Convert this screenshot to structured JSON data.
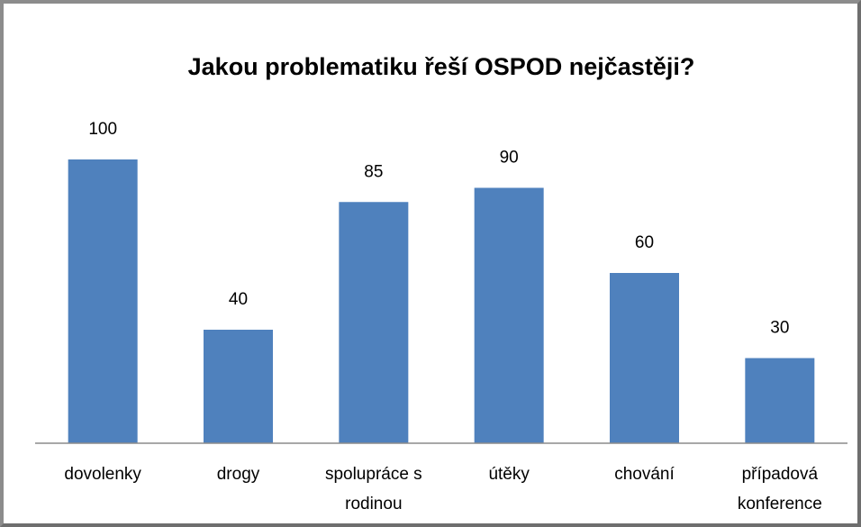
{
  "chart_data": {
    "type": "bar",
    "title": "Jakou problematiku řeší OSPOD nejčastěji?",
    "categories": [
      "dovolenky",
      "drogy",
      "spolupráce s rodinou",
      "útěky",
      "chování",
      "případová konference"
    ],
    "values": [
      100,
      40,
      85,
      90,
      60,
      30
    ],
    "color": "#4f81bd"
  }
}
